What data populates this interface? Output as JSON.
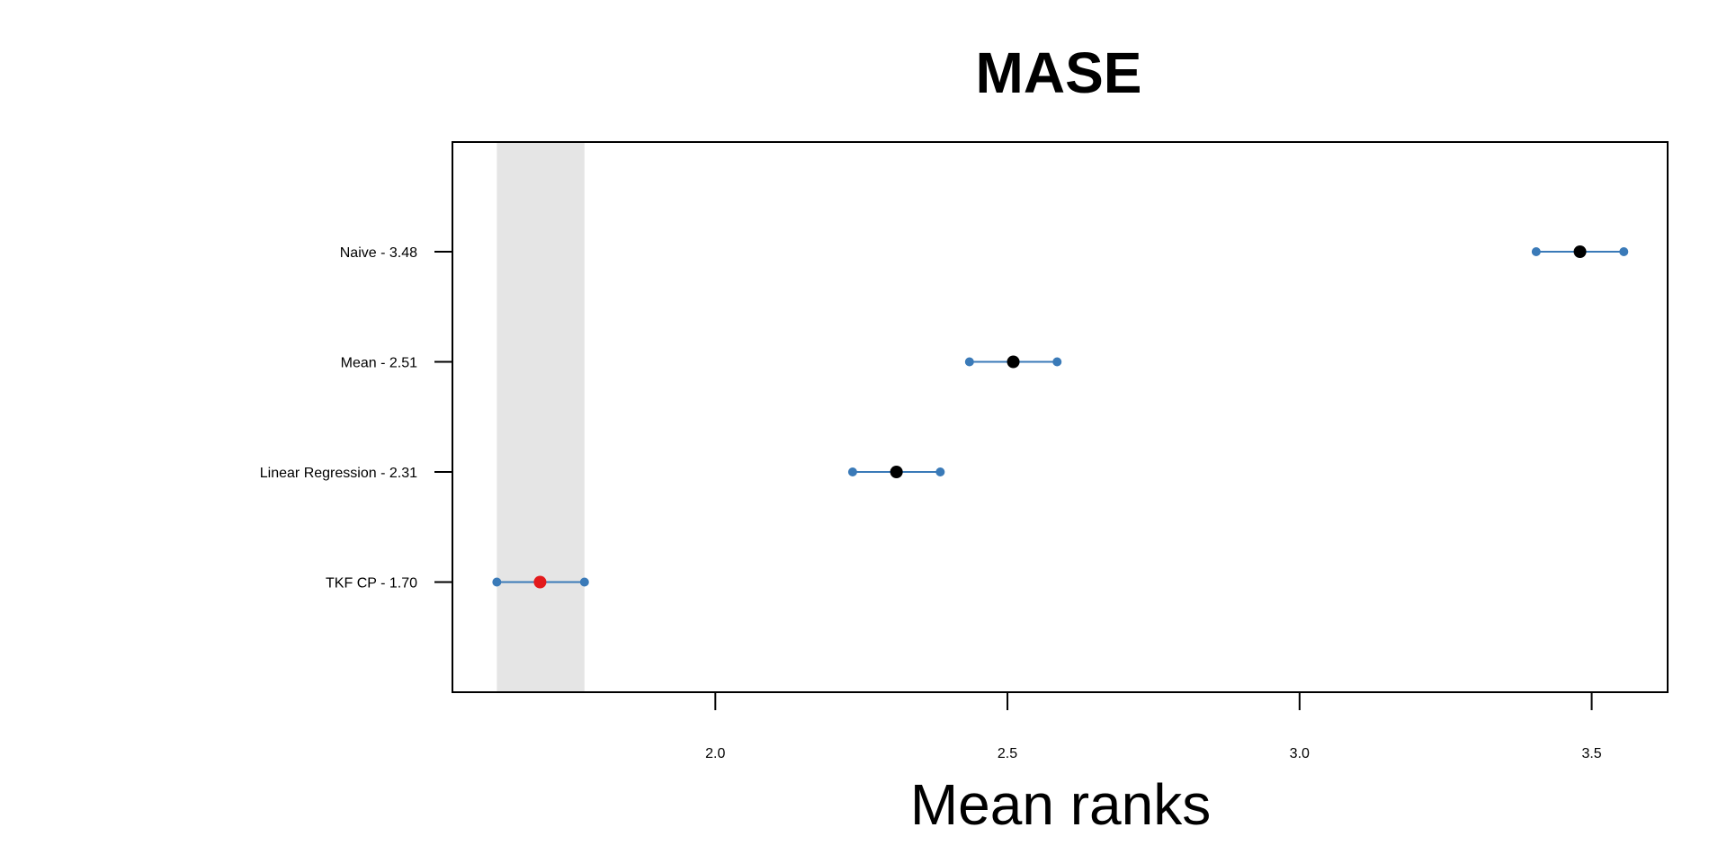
{
  "chart_data": {
    "type": "scatter",
    "title": "MASE",
    "xlabel": "Mean ranks",
    "ylabel": "",
    "xlim": [
      1.55,
      3.63
    ],
    "x_ticks": [
      "2.0",
      "2.5",
      "3.0",
      "3.5"
    ],
    "x_tick_values": [
      2.0,
      2.5,
      3.0,
      3.5
    ],
    "grid": false,
    "legend": "none",
    "colors": {
      "interval": "#3a7ab8",
      "point": "#000000",
      "best_point": "#e31a1c",
      "band": "#e5e5e5",
      "frame": "#000000"
    },
    "band": {
      "x_range": [
        1.626,
        1.776
      ]
    },
    "series": [
      {
        "label": "Naive - 3.48",
        "mean_rank": 3.48,
        "ci": [
          3.405,
          3.555
        ],
        "best": false
      },
      {
        "label": "Mean - 2.51",
        "mean_rank": 2.51,
        "ci": [
          2.435,
          2.585
        ],
        "best": false
      },
      {
        "label": "Linear Regression - 2.31",
        "mean_rank": 2.31,
        "ci": [
          2.235,
          2.385
        ],
        "best": false
      },
      {
        "label": "TKF CP - 1.70",
        "mean_rank": 1.7,
        "ci": [
          1.626,
          1.776
        ],
        "best": true
      }
    ]
  }
}
